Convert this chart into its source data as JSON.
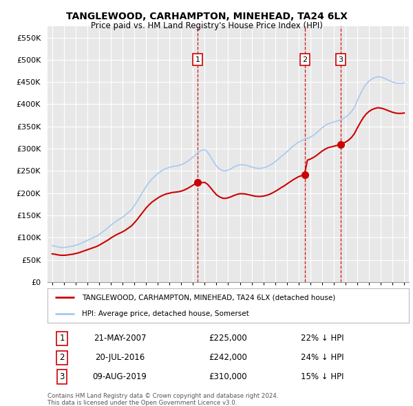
{
  "title": "TANGLEWOOD, CARHAMPTON, MINEHEAD, TA24 6LX",
  "subtitle": "Price paid vs. HM Land Registry's House Price Index (HPI)",
  "background_color": "#ffffff",
  "plot_bg_color": "#e8e8e8",
  "grid_color": "#ffffff",
  "hpi_color": "#a8c8f0",
  "paid_color": "#cc0000",
  "vline_color": "#cc0000",
  "ylim": [
    0,
    570000
  ],
  "yticks": [
    0,
    50000,
    100000,
    150000,
    200000,
    250000,
    300000,
    350000,
    400000,
    450000,
    500000,
    550000
  ],
  "ytick_labels": [
    "£0",
    "£50K",
    "£100K",
    "£150K",
    "£200K",
    "£250K",
    "£300K",
    "£350K",
    "£400K",
    "£450K",
    "£500K",
    "£550K"
  ],
  "sale_date_nums": [
    2007.38,
    2016.55,
    2019.6
  ],
  "sale_prices": [
    225000,
    242000,
    310000
  ],
  "sale_labels": [
    "1",
    "2",
    "3"
  ],
  "sale_dates_str": [
    "21-MAY-2007",
    "20-JUL-2016",
    "09-AUG-2019"
  ],
  "sale_prices_str": [
    "£225,000",
    "£242,000",
    "£310,000"
  ],
  "sale_hpi_str": [
    "22% ↓ HPI",
    "24% ↓ HPI",
    "15% ↓ HPI"
  ],
  "legend_paid_label": "TANGLEWOOD, CARHAMPTON, MINEHEAD, TA24 6LX (detached house)",
  "legend_hpi_label": "HPI: Average price, detached house, Somerset",
  "footer1": "Contains HM Land Registry data © Crown copyright and database right 2024.",
  "footer2": "This data is licensed under the Open Government Licence v3.0.",
  "hpi_data": {
    "years": [
      1995,
      1995.25,
      1995.5,
      1995.75,
      1996,
      1996.25,
      1996.5,
      1996.75,
      1997,
      1997.25,
      1997.5,
      1997.75,
      1998,
      1998.25,
      1998.5,
      1998.75,
      1999,
      1999.25,
      1999.5,
      1999.75,
      2000,
      2000.25,
      2000.5,
      2000.75,
      2001,
      2001.25,
      2001.5,
      2001.75,
      2002,
      2002.25,
      2002.5,
      2002.75,
      2003,
      2003.25,
      2003.5,
      2003.75,
      2004,
      2004.25,
      2004.5,
      2004.75,
      2005,
      2005.25,
      2005.5,
      2005.75,
      2006,
      2006.25,
      2006.5,
      2006.75,
      2007,
      2007.25,
      2007.5,
      2007.75,
      2008,
      2008.25,
      2008.5,
      2008.75,
      2009,
      2009.25,
      2009.5,
      2009.75,
      2010,
      2010.25,
      2010.5,
      2010.75,
      2011,
      2011.25,
      2011.5,
      2011.75,
      2012,
      2012.25,
      2012.5,
      2012.75,
      2013,
      2013.25,
      2013.5,
      2013.75,
      2014,
      2014.25,
      2014.5,
      2014.75,
      2015,
      2015.25,
      2015.5,
      2015.75,
      2016,
      2016.25,
      2016.5,
      2016.75,
      2017,
      2017.25,
      2017.5,
      2017.75,
      2018,
      2018.25,
      2018.5,
      2018.75,
      2019,
      2019.25,
      2019.5,
      2019.75,
      2020,
      2020.25,
      2020.5,
      2020.75,
      2021,
      2021.25,
      2021.5,
      2021.75,
      2022,
      2022.25,
      2022.5,
      2022.75,
      2023,
      2023.25,
      2023.5,
      2023.75,
      2024,
      2024.25,
      2024.5,
      2024.75,
      2025
    ],
    "values": [
      82000,
      81000,
      79000,
      78000,
      78000,
      78500,
      80000,
      81000,
      83000,
      85000,
      88000,
      91000,
      94000,
      97000,
      100000,
      103000,
      107000,
      112000,
      117000,
      122000,
      128000,
      133000,
      138000,
      142000,
      146000,
      151000,
      157000,
      163000,
      172000,
      182000,
      193000,
      204000,
      215000,
      224000,
      232000,
      238000,
      244000,
      249000,
      253000,
      256000,
      258000,
      260000,
      261000,
      262000,
      264000,
      267000,
      271000,
      276000,
      281000,
      287000,
      293000,
      297000,
      298000,
      292000,
      282000,
      271000,
      261000,
      255000,
      251000,
      250000,
      252000,
      255000,
      259000,
      262000,
      264000,
      264000,
      263000,
      261000,
      259000,
      257000,
      256000,
      256000,
      257000,
      259000,
      262000,
      266000,
      271000,
      276000,
      282000,
      287000,
      293000,
      299000,
      305000,
      310000,
      315000,
      318000,
      321000,
      323000,
      326000,
      330000,
      335000,
      341000,
      347000,
      352000,
      356000,
      358000,
      360000,
      362000,
      364000,
      367000,
      371000,
      376000,
      383000,
      393000,
      408000,
      422000,
      435000,
      445000,
      452000,
      457000,
      460000,
      462000,
      461000,
      459000,
      456000,
      453000,
      450000,
      448000,
      447000,
      447000,
      448000
    ]
  }
}
